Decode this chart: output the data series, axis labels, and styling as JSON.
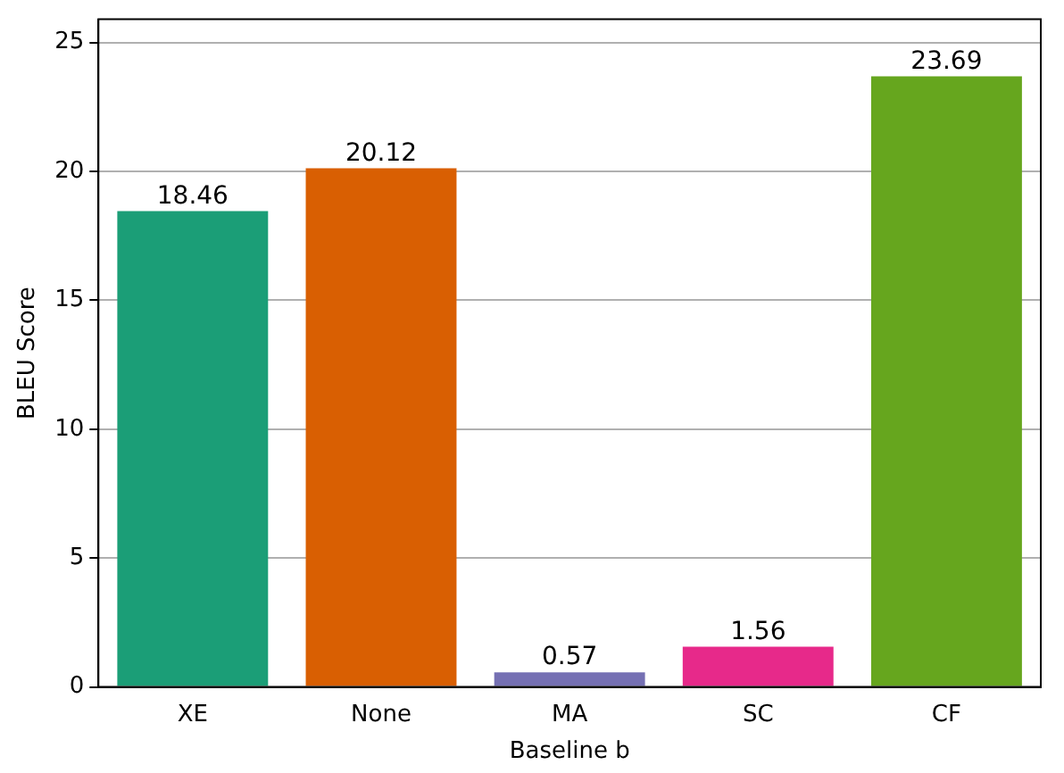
{
  "chart_data": {
    "type": "bar",
    "xlabel": "Baseline b",
    "ylabel": "BLEU Score",
    "categories": [
      "XE",
      "None",
      "MA",
      "SC",
      "CF"
    ],
    "values": [
      18.46,
      20.12,
      0.57,
      1.56,
      23.69
    ],
    "colors": [
      "#1b9e77",
      "#d95f02",
      "#7570b3",
      "#e7298a",
      "#66a61e"
    ],
    "ylim": [
      0,
      25.9
    ],
    "yticks": [
      0,
      5,
      10,
      15,
      20,
      25
    ],
    "grid": "y",
    "data_labels": true
  }
}
